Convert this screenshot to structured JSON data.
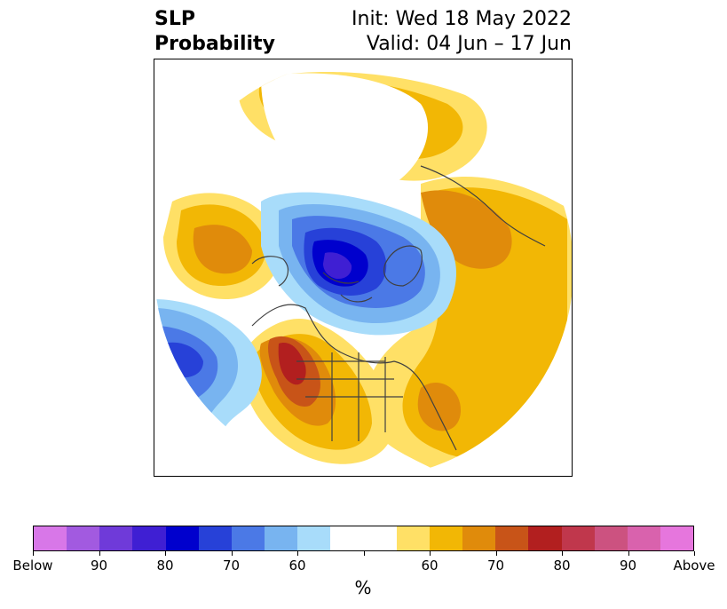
{
  "title": {
    "left_line1": "SLP",
    "left_line2": "Probability",
    "right_line1": "Init: Wed 18 May 2022",
    "right_line2": "Valid: 04 Jun – 17 Jun"
  },
  "colorbar": {
    "colors": [
      "#d877e8",
      "#a25ae0",
      "#6f3ad9",
      "#3f1fd3",
      "#0000cd",
      "#2741d8",
      "#4b79e6",
      "#78b4f0",
      "#a8dcfa",
      "#ffffff",
      "#ffffff",
      "#ffe066",
      "#f2b705",
      "#e08b0b",
      "#c85418",
      "#b21f1f",
      "#c0374c",
      "#cc5280",
      "#d962ad",
      "#e676dd"
    ],
    "tick_labels": [
      "Below",
      "90",
      "80",
      "70",
      "60",
      "",
      "60",
      "70",
      "80",
      "90",
      "Above"
    ],
    "units": "%"
  },
  "map_colors": {
    "below_60": "#a8dcfa",
    "below_70": "#78b4f0",
    "below_80": "#4b79e6",
    "below_90": "#2741d8",
    "below_95": "#0000cd",
    "below_97": "#3f1fd3",
    "above_60": "#ffe066",
    "above_65": "#f2b705",
    "above_70": "#e08b0b",
    "above_75": "#c85418",
    "above_80": "#b21f1f",
    "coastline": "#404040"
  }
}
